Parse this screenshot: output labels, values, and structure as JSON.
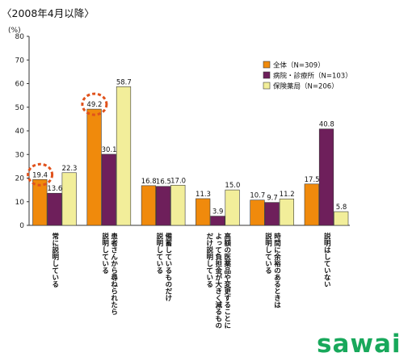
{
  "chart_data": {
    "type": "bar",
    "title": "〈2008年4月以降〉",
    "ylabel": "(%)",
    "ylim": [
      0,
      80
    ],
    "yticks": [
      0,
      10,
      20,
      30,
      40,
      50,
      60,
      70,
      80
    ],
    "grid": false,
    "legend_position": "right",
    "categories": [
      [
        "常に説明している"
      ],
      [
        "患者さんから尋ねられたら",
        "説明している"
      ],
      [
        "備蓄しているものだけ",
        "説明している"
      ],
      [
        "高額の医薬品や変更することに",
        "よって負担金が大きく減るもの",
        "だけ説明している"
      ],
      [
        "時間に余裕のあるときは",
        "説明している"
      ],
      [
        "説明はしていない"
      ]
    ],
    "series": [
      {
        "name": "全体（N=309）",
        "color": "#f08a0c",
        "values": [
          19.4,
          49.2,
          16.8,
          11.3,
          10.7,
          17.5
        ]
      },
      {
        "name": "病院・診療所（N=103）",
        "color": "#6e1f5b",
        "values": [
          13.6,
          30.1,
          16.5,
          3.9,
          9.7,
          40.8
        ]
      },
      {
        "name": "保険薬局（N=206）",
        "color": "#f2ee9a",
        "values": [
          22.3,
          58.7,
          17.0,
          15.0,
          11.2,
          5.8
        ]
      }
    ],
    "highlighted": [
      {
        "series": 0,
        "category": 0
      },
      {
        "series": 0,
        "category": 1
      }
    ]
  },
  "logo": {
    "text": "sawai"
  }
}
